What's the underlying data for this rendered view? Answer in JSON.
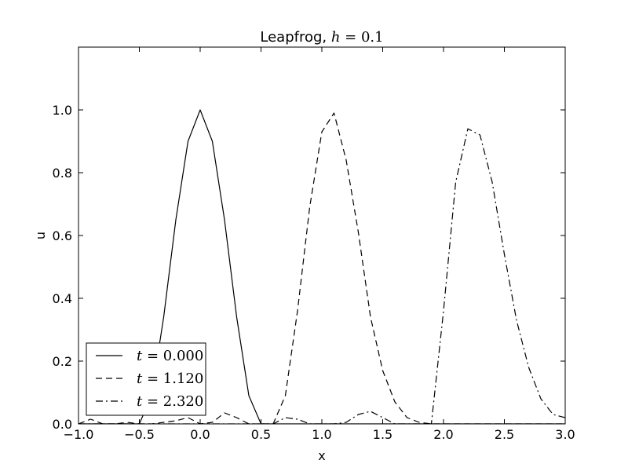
{
  "chart_data": {
    "type": "line",
    "title": {
      "text": "Leapfrog, ",
      "math_var": "h",
      "math_eq": " = ",
      "math_val": "0.1"
    },
    "xlabel": "x",
    "ylabel": "u",
    "xlim": [
      -1.0,
      3.0
    ],
    "ylim": [
      0.0,
      1.2
    ],
    "xticks": [
      -1.0,
      -0.5,
      0.0,
      0.5,
      1.0,
      1.5,
      2.0,
      2.5,
      3.0
    ],
    "xtick_labels": [
      "−1.0",
      "−0.5",
      "0.0",
      "0.5",
      "1.0",
      "1.5",
      "2.0",
      "2.5",
      "3.0"
    ],
    "yticks": [
      0.0,
      0.2,
      0.4,
      0.6,
      0.8,
      1.0
    ],
    "ytick_labels": [
      "0.0",
      "0.2",
      "0.4",
      "0.6",
      "0.8",
      "1.0"
    ],
    "grid": false,
    "legend_position": "lower-left",
    "series": [
      {
        "name": "t = 0.000",
        "label_var": "t",
        "label_eq": " = ",
        "label_val": "0.000",
        "dash": "solid",
        "x": [
          -1.0,
          -0.9,
          -0.8,
          -0.7,
          -0.6,
          -0.5,
          -0.4,
          -0.3,
          -0.2,
          -0.1,
          0.0,
          0.1,
          0.2,
          0.3,
          0.4,
          0.5,
          0.6,
          0.7,
          0.8,
          0.9,
          1.0,
          1.5,
          2.0,
          2.5,
          3.0
        ],
        "y": [
          0.0,
          0.0,
          0.0,
          0.0,
          0.0,
          0.0,
          0.09,
          0.34,
          0.65,
          0.9,
          1.0,
          0.9,
          0.65,
          0.34,
          0.09,
          0.0,
          0.0,
          0.0,
          0.0,
          0.0,
          0.0,
          0.0,
          0.0,
          0.0,
          0.0
        ]
      },
      {
        "name": "t = 1.120",
        "label_var": "t",
        "label_eq": " = ",
        "label_val": "1.120",
        "dash": "dashed",
        "x": [
          -1.0,
          -0.9,
          -0.8,
          -0.7,
          -0.6,
          -0.5,
          -0.4,
          -0.3,
          -0.2,
          -0.1,
          0.0,
          0.1,
          0.2,
          0.3,
          0.4,
          0.5,
          0.6,
          0.7,
          0.8,
          0.9,
          1.0,
          1.1,
          1.2,
          1.3,
          1.4,
          1.5,
          1.6,
          1.7,
          1.8,
          1.9,
          2.0,
          2.5,
          3.0
        ],
        "y": [
          0.0,
          0.015,
          0.0,
          0.0,
          0.005,
          0.0,
          0.0,
          0.005,
          0.01,
          0.02,
          0.0,
          0.005,
          0.035,
          0.02,
          0.0,
          0.0,
          0.0,
          0.09,
          0.36,
          0.69,
          0.93,
          0.99,
          0.84,
          0.61,
          0.34,
          0.17,
          0.07,
          0.02,
          0.005,
          0.0,
          0.0,
          0.0,
          0.0
        ]
      },
      {
        "name": "t = 2.320",
        "label_var": "t",
        "label_eq": " = ",
        "label_val": "2.320",
        "dash": "dashdot",
        "x": [
          -1.0,
          -0.5,
          0.0,
          0.5,
          0.6,
          0.7,
          0.8,
          0.9,
          1.0,
          1.1,
          1.2,
          1.3,
          1.4,
          1.5,
          1.6,
          1.7,
          1.8,
          1.9,
          2.0,
          2.1,
          2.2,
          2.3,
          2.4,
          2.5,
          2.6,
          2.7,
          2.8,
          2.9,
          3.0
        ],
        "y": [
          0.0,
          0.0,
          0.0,
          0.0,
          0.0,
          0.02,
          0.015,
          0.0,
          0.0,
          0.0,
          0.005,
          0.03,
          0.04,
          0.02,
          0.0,
          0.0,
          0.0,
          0.0,
          0.36,
          0.77,
          0.94,
          0.92,
          0.77,
          0.54,
          0.33,
          0.18,
          0.08,
          0.03,
          0.02
        ]
      }
    ]
  }
}
